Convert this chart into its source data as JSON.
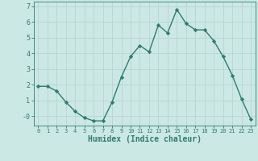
{
  "x": [
    0,
    1,
    2,
    3,
    4,
    5,
    6,
    7,
    8,
    9,
    10,
    11,
    12,
    13,
    14,
    15,
    16,
    17,
    18,
    19,
    20,
    21,
    22,
    23
  ],
  "y": [
    1.9,
    1.9,
    1.6,
    0.9,
    0.3,
    -0.1,
    -0.3,
    -0.3,
    0.9,
    2.5,
    3.8,
    4.5,
    4.1,
    5.8,
    5.3,
    6.8,
    5.9,
    5.5,
    5.5,
    4.8,
    3.8,
    2.6,
    1.1,
    -0.2
  ],
  "line_color": "#2e7d6e",
  "marker": "D",
  "marker_size": 2.2,
  "bg_color": "#cce8e4",
  "grid_color": "#b8d4d0",
  "tick_color": "#2e7d6e",
  "xlabel": "Humidex (Indice chaleur)",
  "xlabel_fontsize": 7,
  "ylim": [
    -0.6,
    7.3
  ],
  "xlim": [
    -0.5,
    23.5
  ],
  "yticks": [
    0,
    1,
    2,
    3,
    4,
    5,
    6,
    7
  ],
  "ytick_labels": [
    "-0",
    "1",
    "2",
    "3",
    "4",
    "5",
    "6",
    "7"
  ],
  "xticks": [
    0,
    1,
    2,
    3,
    4,
    5,
    6,
    7,
    8,
    9,
    10,
    11,
    12,
    13,
    14,
    15,
    16,
    17,
    18,
    19,
    20,
    21,
    22,
    23
  ],
  "line_width": 1.0
}
